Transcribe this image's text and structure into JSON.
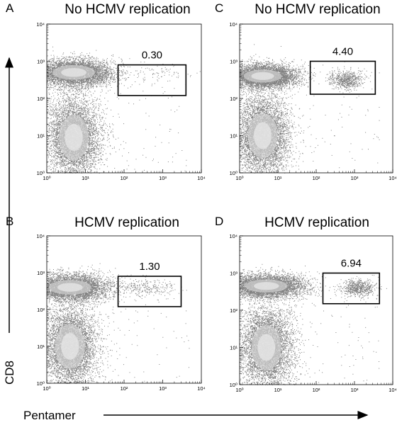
{
  "figure": {
    "ylabel": "CD8",
    "xlabel": "Pentamer"
  },
  "chart_data": [
    {
      "type": "scatter",
      "panel": "A",
      "title": "No HCMV replication",
      "xlim": [
        1,
        10000
      ],
      "ylim": [
        1,
        10000
      ],
      "xscale": "log",
      "yscale": "log",
      "x_ticks": [
        "10⁰",
        "10¹",
        "10²",
        "10³",
        "10⁴"
      ],
      "y_ticks": [
        "10⁰",
        "10¹",
        "10²",
        "10³",
        "10⁴"
      ],
      "gate": {
        "label": "0.30",
        "x_range": [
          70,
          4000
        ],
        "y_range": [
          120,
          800
        ]
      },
      "populations": [
        {
          "center": [
            5,
            500
          ],
          "spread": [
            0.5,
            0.18
          ],
          "density": "very high"
        },
        {
          "center": [
            5,
            9
          ],
          "spread": [
            0.35,
            0.55
          ],
          "density": "very high"
        },
        {
          "center": [
            700,
            500
          ],
          "spread": [
            0.45,
            0.12
          ],
          "density": "low"
        }
      ]
    },
    {
      "type": "scatter",
      "panel": "B",
      "title": "HCMV replication",
      "xlim": [
        1,
        10000
      ],
      "ylim": [
        1,
        10000
      ],
      "xscale": "log",
      "yscale": "log",
      "x_ticks": [
        "10⁰",
        "10¹",
        "10²",
        "10³",
        "10⁴"
      ],
      "y_ticks": [
        "10⁰",
        "10¹",
        "10²",
        "10³",
        "10⁴"
      ],
      "gate": {
        "label": "1.30",
        "x_range": [
          70,
          3000
        ],
        "y_range": [
          120,
          800
        ]
      },
      "populations": [
        {
          "center": [
            4,
            400
          ],
          "spread": [
            0.5,
            0.18
          ],
          "density": "very high"
        },
        {
          "center": [
            4,
            10
          ],
          "spread": [
            0.35,
            0.55
          ],
          "density": "very high"
        },
        {
          "center": [
            350,
            400
          ],
          "spread": [
            0.4,
            0.12
          ],
          "density": "medium"
        }
      ]
    },
    {
      "type": "scatter",
      "panel": "C",
      "title": "No HCMV replication",
      "xlim": [
        1,
        10000
      ],
      "ylim": [
        1,
        10000
      ],
      "xscale": "log",
      "yscale": "log",
      "x_ticks": [
        "10⁰",
        "10¹",
        "10²",
        "10³",
        "10⁴"
      ],
      "y_ticks": [
        "10⁰",
        "10¹",
        "10²",
        "10³",
        "10⁴"
      ],
      "gate": {
        "label": "4.40",
        "x_range": [
          70,
          3500
        ],
        "y_range": [
          130,
          1000
        ]
      },
      "populations": [
        {
          "center": [
            4,
            400
          ],
          "spread": [
            0.45,
            0.16
          ],
          "density": "very high"
        },
        {
          "center": [
            4,
            10
          ],
          "spread": [
            0.35,
            0.55
          ],
          "density": "very high"
        },
        {
          "center": [
            600,
            320
          ],
          "spread": [
            0.22,
            0.12
          ],
          "density": "high"
        }
      ]
    },
    {
      "type": "scatter",
      "panel": "D",
      "title": "HCMV replication",
      "xlim": [
        1,
        10000
      ],
      "ylim": [
        1,
        10000
      ],
      "xscale": "log",
      "yscale": "log",
      "x_ticks": [
        "10⁰",
        "10¹",
        "10²",
        "10³",
        "10⁴"
      ],
      "y_ticks": [
        "10⁰",
        "10¹",
        "10²",
        "10³",
        "10⁴"
      ],
      "gate": {
        "label": "6.94",
        "x_range": [
          150,
          4500
        ],
        "y_range": [
          150,
          1000
        ]
      },
      "populations": [
        {
          "center": [
            5,
            450
          ],
          "spread": [
            0.5,
            0.16
          ],
          "density": "very high"
        },
        {
          "center": [
            5,
            10
          ],
          "spread": [
            0.35,
            0.55
          ],
          "density": "very high"
        },
        {
          "center": [
            1200,
            400
          ],
          "spread": [
            0.22,
            0.12
          ],
          "density": "high"
        }
      ]
    }
  ]
}
